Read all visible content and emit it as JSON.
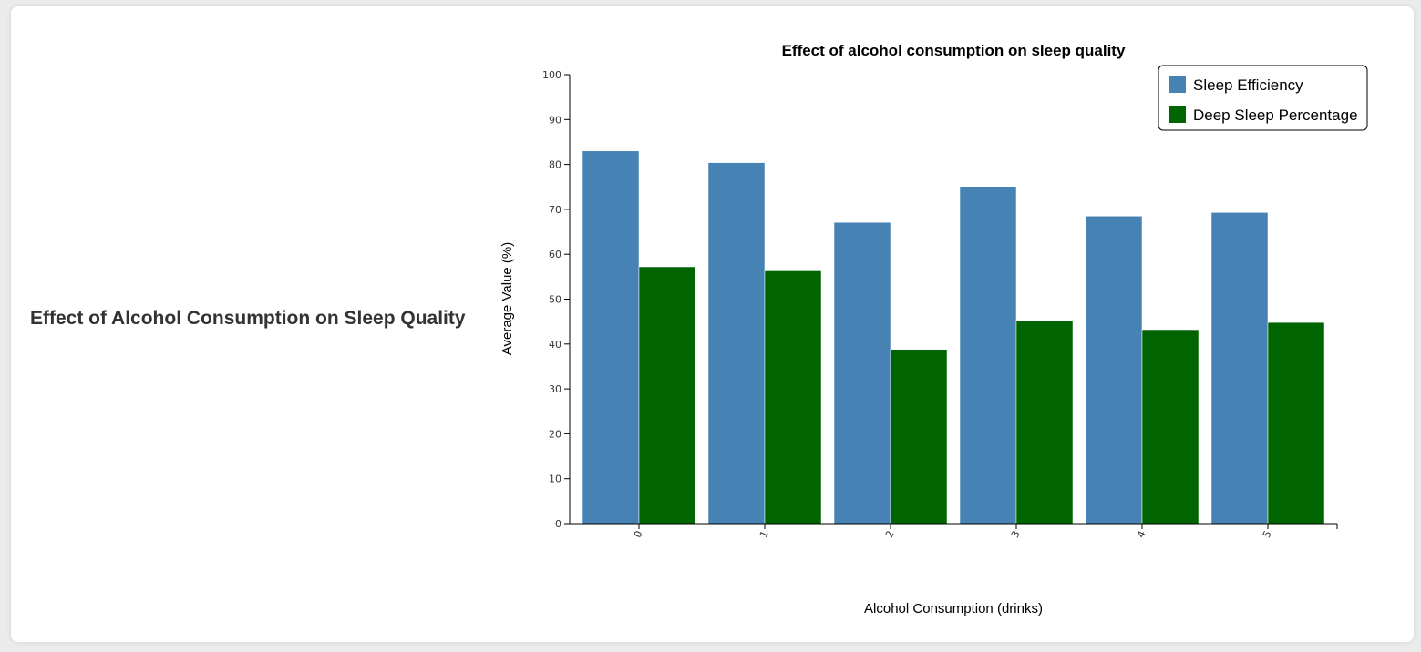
{
  "page": {
    "heading": "Effect of Alcohol Consumption on Sleep Quality"
  },
  "chart_data": {
    "type": "bar",
    "title": "Effect of alcohol consumption on sleep quality",
    "xlabel": "Alcohol Consumption (drinks)",
    "ylabel": "Average Value (%)",
    "categories": [
      "0",
      "1",
      "2",
      "3",
      "4",
      "5"
    ],
    "series": [
      {
        "name": "Sleep Efficiency",
        "color": "#4682b4",
        "values": [
          83.0,
          80.4,
          67.1,
          75.1,
          68.5,
          69.3
        ]
      },
      {
        "name": "Deep Sleep Percentage",
        "color": "#006400",
        "values": [
          57.2,
          56.3,
          38.8,
          45.1,
          43.2,
          44.8
        ]
      }
    ],
    "ylim": [
      0,
      100
    ],
    "yticks": [
      0,
      10,
      20,
      30,
      40,
      50,
      60,
      70,
      80,
      90,
      100
    ],
    "legend_position": "top-right",
    "grid": false
  }
}
